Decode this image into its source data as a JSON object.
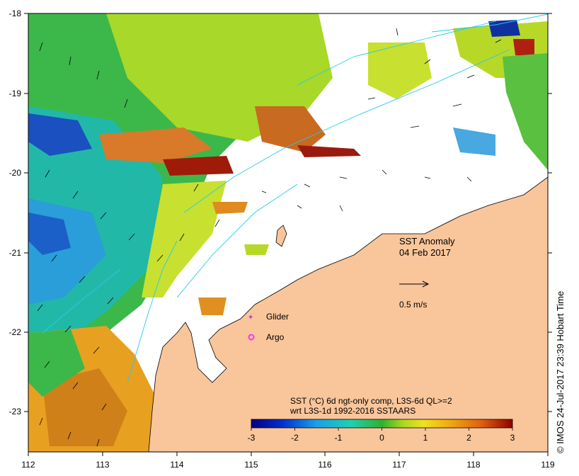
{
  "map": {
    "title": "SST Anomaly",
    "date": "04 Feb 2017",
    "velocity_scale_label": "0.5 m/s",
    "legend_glider": "Glider",
    "legend_argo": "Argo",
    "colorbar_line1": "SST (°C) 6d ngt-only comp, L3S-6d QL>=2",
    "colorbar_line2": "wrt L3S-1d 1992-2016 SSTAARS",
    "colorbar_ticks": [
      "-3",
      "-2",
      "-1",
      "0",
      "1",
      "2",
      "3"
    ],
    "credit": "© IMOS 24-Jul-2017 23:39 Hobart Time",
    "x_ticks": [
      "112",
      "113",
      "114",
      "115",
      "116",
      "117",
      "118",
      "119"
    ],
    "y_ticks": [
      "-18",
      "-19",
      "-20",
      "-21",
      "-22",
      "-23"
    ],
    "colors": {
      "land": "#f9c59a",
      "current": "#22ccee",
      "glider": "#cc33cc",
      "argo": "#ff33ff"
    }
  }
}
